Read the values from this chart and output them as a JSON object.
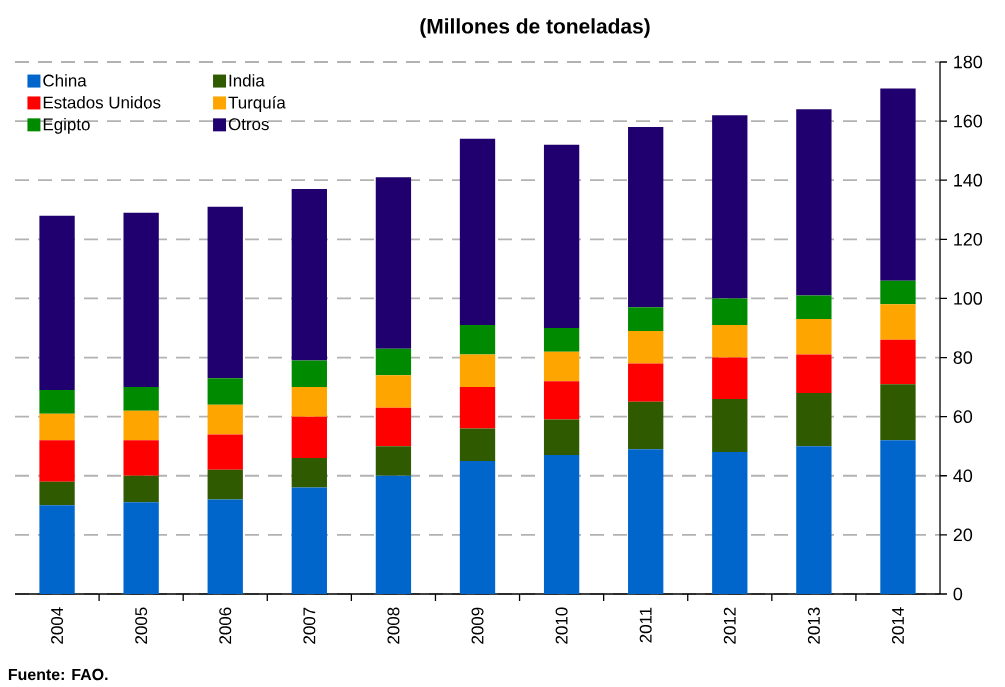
{
  "chart_data": {
    "type": "bar",
    "stacked": true,
    "title": "(Millones de toneladas)",
    "categories": [
      "2004",
      "2005",
      "2006",
      "2007",
      "2008",
      "2009",
      "2010",
      "2011",
      "2012",
      "2013",
      "2014"
    ],
    "series": [
      {
        "name": "China",
        "color": "#0066cc",
        "values": [
          30,
          31,
          32,
          36,
          40,
          45,
          47,
          49,
          48,
          50,
          52
        ]
      },
      {
        "name": "India",
        "color": "#305a00",
        "values": [
          8,
          9,
          10,
          10,
          10,
          11,
          12,
          16,
          18,
          18,
          19
        ]
      },
      {
        "name": "Estados Unidos",
        "color": "#ff0000",
        "values": [
          14,
          12,
          12,
          14,
          13,
          14,
          13,
          13,
          14,
          13,
          15
        ]
      },
      {
        "name": "Turquía",
        "color": "#ffa500",
        "values": [
          9,
          10,
          10,
          10,
          11,
          11,
          10,
          11,
          11,
          12,
          12
        ]
      },
      {
        "name": "Egipto",
        "color": "#008a00",
        "values": [
          8,
          8,
          9,
          9,
          9,
          10,
          8,
          8,
          9,
          8,
          8
        ]
      },
      {
        "name": "Otros",
        "color": "#20006e",
        "values": [
          59,
          59,
          58,
          58,
          58,
          63,
          62,
          61,
          62,
          63,
          65
        ]
      }
    ],
    "ylim": [
      0,
      180
    ],
    "yticks": [
      0,
      20,
      40,
      60,
      80,
      100,
      120,
      140,
      160,
      180
    ],
    "grid": "y",
    "legend": "top left",
    "annotations": [
      "Fuente: FAO."
    ]
  }
}
